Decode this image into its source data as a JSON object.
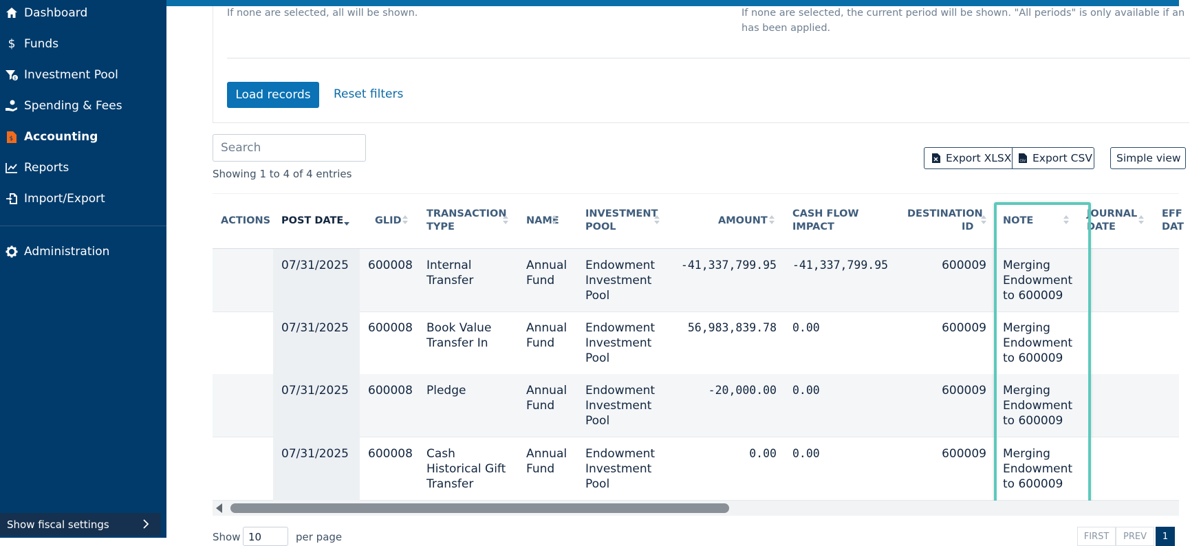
{
  "sidebar": {
    "items": [
      {
        "label": "Dashboard",
        "icon": "home-icon"
      },
      {
        "label": "Funds",
        "icon": "dollar-icon"
      },
      {
        "label": "Investment Pool",
        "icon": "investment-pool-icon"
      },
      {
        "label": "Spending & Fees",
        "icon": "hand-coin-icon"
      },
      {
        "label": "Accounting",
        "icon": "document-dollar-icon"
      },
      {
        "label": "Reports",
        "icon": "chart-line-icon"
      },
      {
        "label": "Import/Export",
        "icon": "import-export-icon"
      }
    ],
    "admin_label": "Administration",
    "fiscal_label": "Show fiscal settings",
    "active": "Accounting"
  },
  "filters": {
    "hint_left": "If none are selected, all will be shown.",
    "hint_right_1": "If none are selected, the current period will be shown. \"All periods\" is only available if an",
    "hint_right_2": "has been applied.",
    "load_label": "Load records",
    "reset_label": "Reset filters"
  },
  "toolbar": {
    "search_placeholder": "Search",
    "showing": "Showing 1 to 4 of 4 entries",
    "export_xlsx": "Export XLSX",
    "export_csv": "Export CSV",
    "simple_view": "Simple view"
  },
  "table": {
    "headers": {
      "actions": "ACTIONS",
      "post_date": "POST DATE",
      "glid": "GLID",
      "transaction_type_1": "TRANSACTION",
      "transaction_type_2": "TYPE",
      "name": "NAME",
      "investment_pool_1": "INVESTMENT",
      "investment_pool_2": "POOL",
      "amount": "AMOUNT",
      "cash_flow_1": "CASH FLOW",
      "cash_flow_2": "IMPACT",
      "destination_1": "DESTINATION",
      "destination_2": "ID",
      "note": "NOTE",
      "journal_1": "JOURNAL",
      "journal_2": "DATE",
      "eff_1": "EFF",
      "eff_2": "DAT"
    },
    "rows": [
      {
        "post_date": "07/31/2025",
        "glid": "600008",
        "type": [
          "Internal",
          "Transfer"
        ],
        "name": [
          "Annual",
          "Fund"
        ],
        "pool": [
          "Endowment",
          "Investment",
          "Pool"
        ],
        "amount": "-41,337,799.95",
        "cash_flow": "-41,337,799.95",
        "destination": "600009",
        "note": [
          "Merging",
          "Endowment",
          "to 600009"
        ]
      },
      {
        "post_date": "07/31/2025",
        "glid": "600008",
        "type": [
          "Book Value",
          "Transfer In"
        ],
        "name": [
          "Annual",
          "Fund"
        ],
        "pool": [
          "Endowment",
          "Investment",
          "Pool"
        ],
        "amount": "56,983,839.78",
        "cash_flow": "0.00",
        "destination": "600009",
        "note": [
          "Merging",
          "Endowment",
          "to 600009"
        ]
      },
      {
        "post_date": "07/31/2025",
        "glid": "600008",
        "type": [
          "Pledge",
          ""
        ],
        "name": [
          "Annual",
          "Fund"
        ],
        "pool": [
          "Endowment",
          "Investment",
          "Pool"
        ],
        "amount": "-20,000.00",
        "cash_flow": "0.00",
        "destination": "600009",
        "note": [
          "Merging",
          "Endowment",
          "to 600009"
        ]
      },
      {
        "post_date": "07/31/2025",
        "glid": "600008",
        "type": [
          "Cash",
          "Historical Gift",
          "Transfer"
        ],
        "name": [
          "Annual",
          "Fund"
        ],
        "pool": [
          "Endowment",
          "Investment",
          "Pool"
        ],
        "amount": "0.00",
        "cash_flow": "0.00",
        "destination": "600009",
        "note": [
          "Merging",
          "Endowment",
          "to 600009"
        ]
      }
    ]
  },
  "footer": {
    "show_label": "Show",
    "per_page_value": "10",
    "per_page_label": "per page",
    "first": "FIRST",
    "prev": "PREV",
    "page": "1"
  },
  "colors": {
    "sidebar_bg": "#003b6b",
    "accent": "#0a72b5",
    "highlight": "#5cc9bd",
    "accounting_icon": "#f26b1d"
  }
}
